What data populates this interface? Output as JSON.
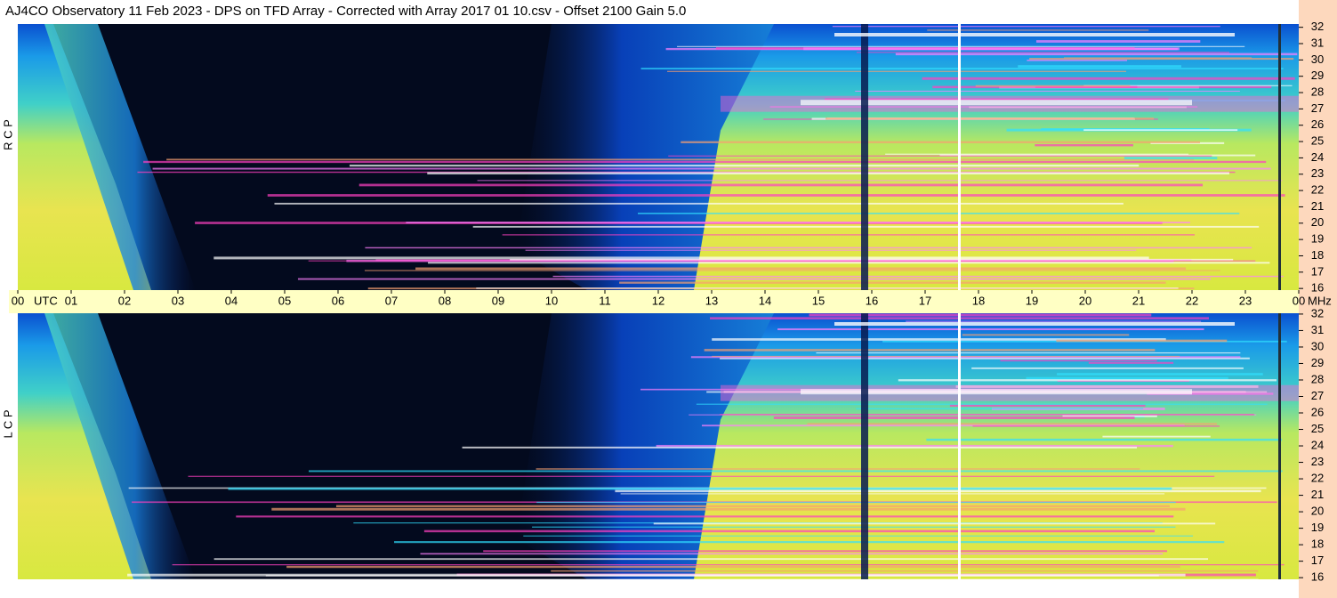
{
  "chart_data": {
    "type": "spectrogram",
    "title": "AJ4CO Observatory  11 Feb 2023  -  DPS on TFD Array  -  Corrected with Array 2017 01 10.csv  -  Offset 2100  Gain 5.0",
    "xlabel": "UTC",
    "ylabel": "MHz",
    "xlim": [
      0,
      24
    ],
    "xticks": [
      {
        "value": 0,
        "label": "00"
      },
      {
        "value": 1,
        "label": "01"
      },
      {
        "value": 2,
        "label": "02"
      },
      {
        "value": 3,
        "label": "03"
      },
      {
        "value": 4,
        "label": "04"
      },
      {
        "value": 5,
        "label": "05"
      },
      {
        "value": 6,
        "label": "06"
      },
      {
        "value": 7,
        "label": "07"
      },
      {
        "value": 8,
        "label": "08"
      },
      {
        "value": 9,
        "label": "09"
      },
      10,
      11,
      12,
      13,
      14,
      15,
      16,
      17,
      18,
      19,
      20,
      21,
      22,
      23,
      {
        "value": 24,
        "label": "00"
      }
    ],
    "panels": [
      {
        "name": "R C P",
        "ylim": [
          15.9,
          32.2
        ],
        "yticks": [
          16,
          17,
          18,
          19,
          20,
          21,
          22,
          23,
          24,
          25,
          26,
          27,
          28,
          29,
          30,
          31,
          32
        ]
      },
      {
        "name": "L C P",
        "ylim": [
          15.9,
          32.05
        ],
        "yticks": [
          16,
          17,
          18,
          19,
          20,
          21,
          22,
          23,
          24,
          25,
          26,
          27,
          28,
          29,
          30,
          31,
          32
        ]
      }
    ]
  }
}
